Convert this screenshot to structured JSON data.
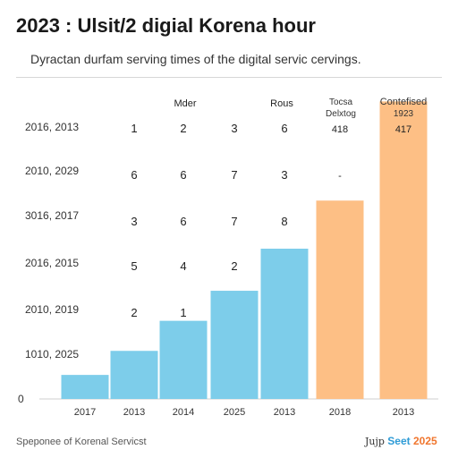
{
  "title": "2023 : Ulsit/2 digial Korena hour",
  "subtitle": "Dyractan durfam serving times of the digital servic cervings.",
  "footer": {
    "left": "Speponee of Korenal Servicst",
    "right_a": "Jujp",
    "right_b": "Seet",
    "right_c": "2025"
  },
  "chart_data": {
    "type": "bar",
    "categories": [
      "2017",
      "2013",
      "2014",
      "2025",
      "2013",
      "2018",
      "2013"
    ],
    "series": [
      {
        "color": "#7dcdea",
        "values": [
          0.8,
          1.6,
          2.6,
          3.6,
          5.0,
          null,
          null
        ]
      },
      {
        "color": "#fdbf85",
        "values": [
          null,
          null,
          null,
          null,
          null,
          6.6,
          9.9
        ]
      }
    ],
    "ylim": [
      0,
      10
    ],
    "ytick_value": 0,
    "ytick_label": "0",
    "row_labels": [
      "2016, 2013",
      "2010, 2029",
      "3016, 2017",
      "2016, 2015",
      "2010, 2019",
      "1010, 2025"
    ],
    "column_headers": [
      "Mder",
      "Rous",
      "Tocsa",
      "Delxtog",
      "Contefised",
      "1923"
    ],
    "grid_rows": [
      [
        "1",
        "2",
        "3",
        "6",
        "418",
        "417"
      ],
      [
        "6",
        "6",
        "7",
        "3",
        "-",
        ""
      ],
      [
        "3",
        "6",
        "7",
        "8",
        "",
        ""
      ],
      [
        "5",
        "4",
        "2",
        "",
        "",
        ""
      ],
      [
        "2",
        "1",
        "",
        "",
        "",
        ""
      ]
    ]
  }
}
